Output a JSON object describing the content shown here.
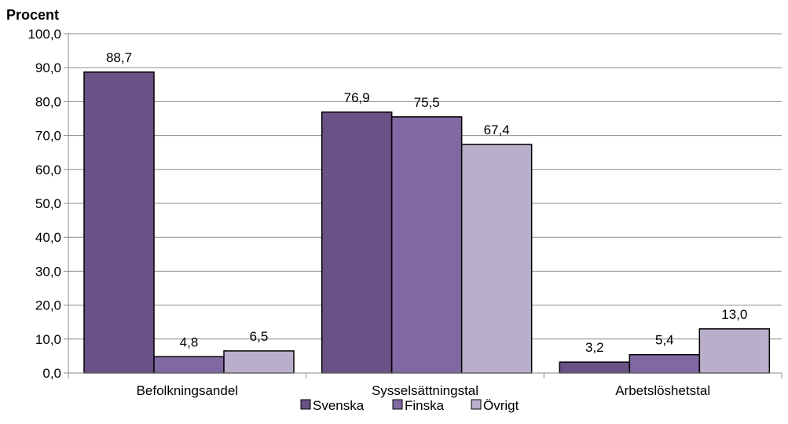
{
  "chart_data": {
    "type": "bar",
    "ylabel": "Procent",
    "xlabel": "",
    "title": "",
    "ylim": [
      0,
      100
    ],
    "yticks": [
      "0,0",
      "10,0",
      "20,0",
      "30,0",
      "40,0",
      "50,0",
      "60,0",
      "70,0",
      "80,0",
      "90,0",
      "100,0"
    ],
    "categories": [
      "Befolkningsandel",
      "Sysselsättningstal",
      "Arbetslöshetstal"
    ],
    "series": [
      {
        "name": "Svenska",
        "values": [
          88.7,
          76.9,
          3.2
        ],
        "labels": [
          "88,7",
          "76,9",
          "3,2"
        ],
        "color": "#6a5186"
      },
      {
        "name": "Finska",
        "values": [
          4.8,
          75.5,
          5.4
        ],
        "labels": [
          "4,8",
          "75,5",
          "5,4"
        ],
        "color": "#8068a3"
      },
      {
        "name": "Övrigt",
        "values": [
          6.5,
          67.4,
          13.0
        ],
        "labels": [
          "6,5",
          "67,4",
          "13,0"
        ],
        "color": "#b9afcb"
      }
    ],
    "grid": true,
    "legend_position": "bottom"
  }
}
